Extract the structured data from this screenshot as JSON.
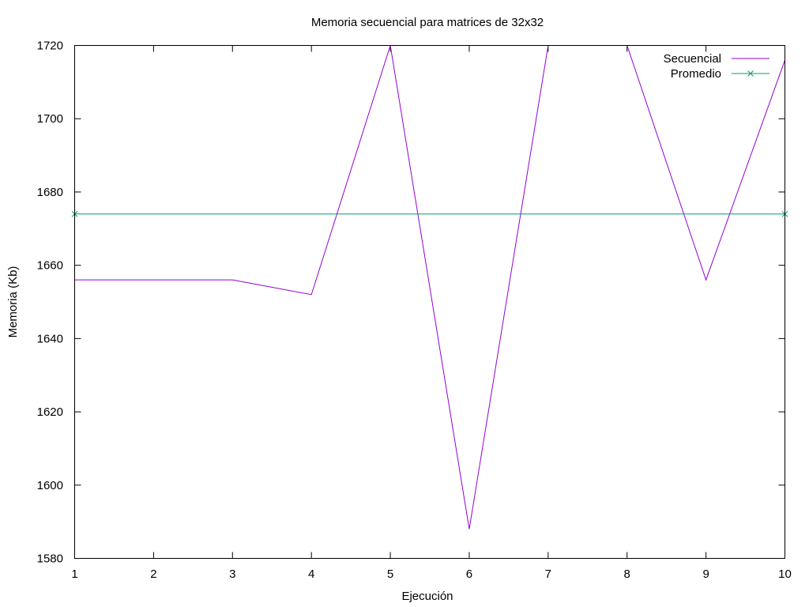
{
  "chart_data": {
    "type": "line",
    "title": "Memoria secuencial para matrices de 32x32",
    "xlabel": "Ejecución",
    "ylabel": "Memoria (Kb)",
    "xlim": [
      1,
      10
    ],
    "ylim": [
      1580,
      1720
    ],
    "x_ticks": [
      1,
      2,
      3,
      4,
      5,
      6,
      7,
      8,
      9,
      10
    ],
    "y_ticks": [
      1580,
      1600,
      1620,
      1640,
      1660,
      1680,
      1700,
      1720
    ],
    "grid": false,
    "legend_position": "top-right",
    "series": [
      {
        "name": "Secuencial",
        "color": "#9400d3",
        "marker": "none",
        "x": [
          1,
          2,
          3,
          4,
          5,
          6,
          7,
          8,
          9,
          10
        ],
        "y": [
          1656,
          1656,
          1656,
          1652,
          1720,
          1588,
          1720,
          1720,
          1656,
          1716
        ]
      },
      {
        "name": "Promedio",
        "color": "#009e73",
        "marker": "x",
        "x": [
          1,
          10
        ],
        "y": [
          1674,
          1674
        ]
      }
    ]
  }
}
